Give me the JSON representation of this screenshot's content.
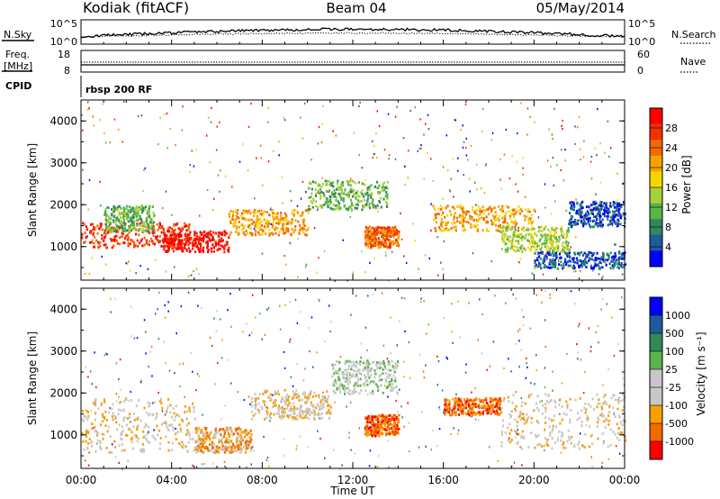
{
  "header": {
    "station": "Kodiak (fitACF)",
    "beam": "Beam 04",
    "date": "05/May/2014"
  },
  "top_panels": {
    "nsky_label": "N.Sky",
    "nsky_ticks": [
      "10^5",
      "10^0"
    ],
    "nsearch_label": "N.Search",
    "nsearch_ticks": [
      "10^5",
      "10^0"
    ],
    "freq_label_line1": "Freq.",
    "freq_label_line2": "[MHz]",
    "freq_ticks": [
      "18",
      "8"
    ],
    "nave_label": "Nave",
    "nave_ticks": [
      "60",
      "0"
    ],
    "cpid_label": "CPID",
    "cpid_value": "rbsp 200 RF"
  },
  "colors": {
    "power_scale": [
      "#0000ff",
      "#1f5a9e",
      "#2f8a5a",
      "#5cb34a",
      "#a8d03a",
      "#f5d800",
      "#f7a000",
      "#f06a00",
      "#f03000",
      "#ff0000"
    ],
    "velocity_scale": [
      "#ff0000",
      "#f06a00",
      "#f7a000",
      "#c8c8c8",
      "#c8c8c8",
      "#5cb34a",
      "#2f8a5a",
      "#1f5a9e",
      "#0000ff"
    ]
  },
  "chart_data": [
    {
      "type": "heatmap",
      "name": "power-panel",
      "ylabel": "Slant Range [km]",
      "yticks": [
        1000,
        2000,
        3000,
        4000
      ],
      "ylim": [
        200,
        4500
      ],
      "xlim": [
        0,
        24
      ],
      "xticks": [
        "00:00",
        "04:00",
        "08:00",
        "12:00",
        "16:00",
        "20:00",
        "00:00"
      ],
      "colorbar_label": "Power [dB]",
      "colorbar_ticks": [
        "28",
        "24",
        "20",
        "16",
        "12",
        "8",
        "4"
      ],
      "bands": [
        {
          "x": [
            0,
            4.8
          ],
          "y": [
            1000,
            1600
          ],
          "level": 8
        },
        {
          "x": [
            3.5,
            6.5
          ],
          "y": [
            900,
            1400
          ],
          "level": 9
        },
        {
          "x": [
            1,
            3.2
          ],
          "y": [
            1400,
            2000
          ],
          "level": 3
        },
        {
          "x": [
            6.5,
            10
          ],
          "y": [
            1300,
            1900
          ],
          "level": 6
        },
        {
          "x": [
            10,
            13.5
          ],
          "y": [
            1900,
            2600
          ],
          "level": 3
        },
        {
          "x": [
            12.5,
            14
          ],
          "y": [
            1000,
            1500
          ],
          "level": 7
        },
        {
          "x": [
            15.5,
            20
          ],
          "y": [
            1400,
            2000
          ],
          "level": 6
        },
        {
          "x": [
            18.5,
            21.5
          ],
          "y": [
            900,
            1500
          ],
          "level": 4
        },
        {
          "x": [
            21.5,
            24
          ],
          "y": [
            1500,
            2100
          ],
          "level": 1
        },
        {
          "x": [
            20,
            24
          ],
          "y": [
            500,
            900
          ],
          "level": 1
        }
      ]
    },
    {
      "type": "heatmap",
      "name": "velocity-panel",
      "ylabel": "Slant Range [km]",
      "yticks": [
        1000,
        2000,
        3000,
        4000
      ],
      "ylim": [
        200,
        4500
      ],
      "xlim": [
        0,
        24
      ],
      "xticks": [
        "00:00",
        "04:00",
        "08:00",
        "12:00",
        "16:00",
        "20:00",
        "00:00"
      ],
      "xlabel": "Time UT",
      "colorbar_label": "Velocity [m s⁻¹]",
      "colorbar_ticks": [
        "1000",
        "500",
        "100",
        "25",
        "-25",
        "-100",
        "-500",
        "-1000"
      ],
      "bands": [
        {
          "x": [
            0,
            5
          ],
          "y": [
            600,
            1900
          ],
          "level": 3
        },
        {
          "x": [
            5,
            7.5
          ],
          "y": [
            600,
            1200
          ],
          "level": 2
        },
        {
          "x": [
            7.5,
            11
          ],
          "y": [
            1400,
            2100
          ],
          "level": 3
        },
        {
          "x": [
            11,
            14
          ],
          "y": [
            2000,
            2800
          ],
          "level": 4
        },
        {
          "x": [
            12.5,
            14
          ],
          "y": [
            1000,
            1500
          ],
          "level": 1
        },
        {
          "x": [
            16,
            18.5
          ],
          "y": [
            1500,
            1900
          ],
          "level": 1
        },
        {
          "x": [
            18.5,
            24
          ],
          "y": [
            700,
            2000
          ],
          "level": 3
        }
      ]
    }
  ]
}
